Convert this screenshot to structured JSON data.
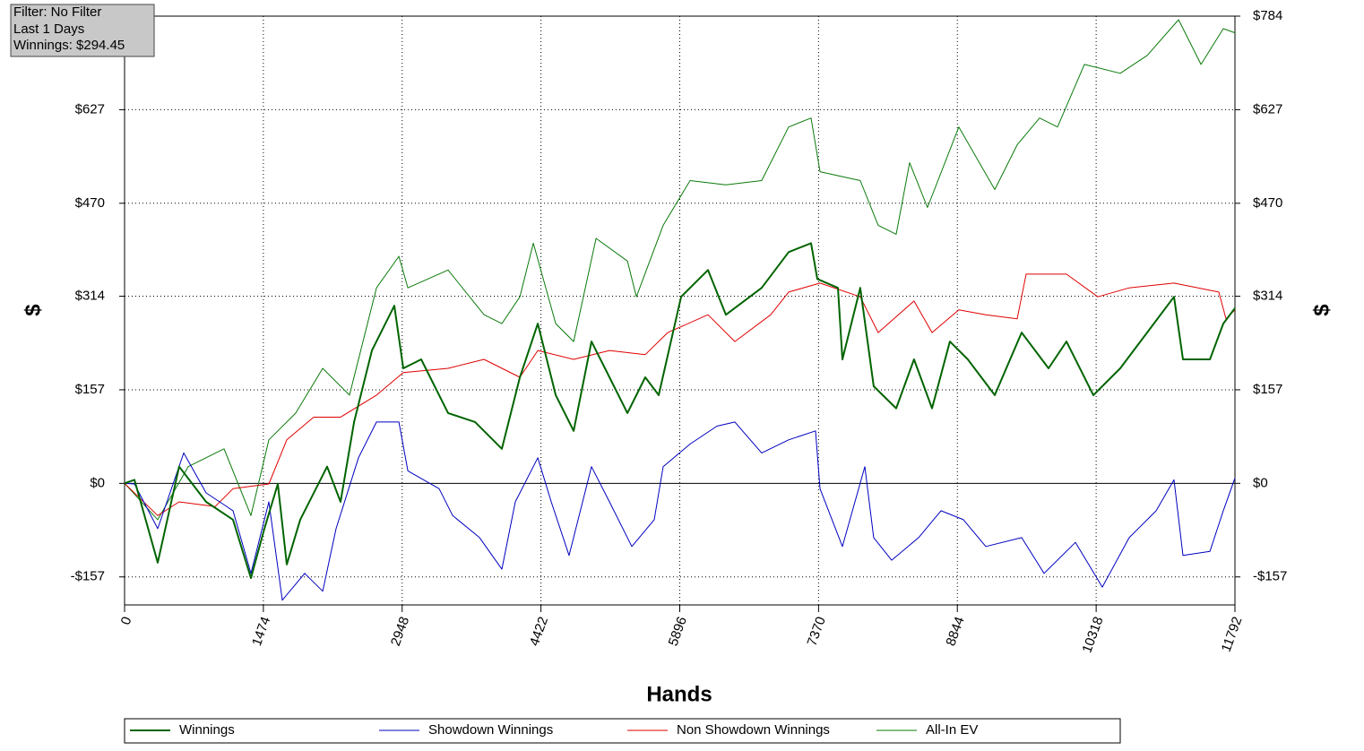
{
  "chart_data": {
    "type": "line",
    "info_box": [
      "Filter: No Filter",
      "Last 1 Days",
      "Winnings: $294.45"
    ],
    "xlabel": "Hands",
    "ylabel": "$",
    "xlim": [
      0,
      11792
    ],
    "xticks": [
      0,
      1474,
      2948,
      4422,
      5896,
      7370,
      8844,
      10318,
      11792
    ],
    "ylim": [
      -204,
      784
    ],
    "yticks": [
      {
        "value": 784,
        "label": "$784"
      },
      {
        "value": 627,
        "label": "$627"
      },
      {
        "value": 470,
        "label": "$470"
      },
      {
        "value": 314,
        "label": "$314"
      },
      {
        "value": 157,
        "label": "$157"
      },
      {
        "value": 0,
        "label": "$0"
      },
      {
        "value": -157,
        "label": "-$157"
      }
    ],
    "grid": true,
    "series": [
      {
        "name": "Winnings",
        "color": "#006400",
        "width": 2,
        "x": [
          0,
          105,
          352,
          580,
          866,
          1152,
          1342,
          1485,
          1627,
          1723,
          1865,
          2151,
          2294,
          2437,
          2627,
          2865,
          2960,
          3150,
          3436,
          3722,
          4007,
          4198,
          4388,
          4579,
          4769,
          4959,
          5150,
          5340,
          5530,
          5672,
          5910,
          6196,
          6386,
          6766,
          7052,
          7290,
          7357,
          7576,
          7623,
          7813,
          7956,
          8194,
          8384,
          8575,
          8765,
          8955,
          9241,
          9527,
          9812,
          10003,
          10288,
          10574,
          10859,
          11145,
          11240,
          11526,
          11668,
          11792
        ],
        "values": [
          0,
          6,
          -133,
          28,
          -31,
          -61,
          -159,
          -76,
          -1,
          -136,
          -61,
          28,
          -31,
          103,
          223,
          298,
          193,
          208,
          118,
          103,
          58,
          178,
          268,
          148,
          88,
          238,
          178,
          118,
          178,
          148,
          313,
          358,
          283,
          328,
          388,
          403,
          343,
          328,
          208,
          328,
          163,
          126,
          208,
          126,
          238,
          208,
          148,
          253,
          193,
          238,
          148,
          193,
          253,
          313,
          208,
          208,
          268,
          294
        ]
      },
      {
        "name": "Showdown Winnings",
        "color": "#0000c0",
        "width": 1,
        "x": [
          0,
          105,
          352,
          628,
          866,
          1152,
          1342,
          1532,
          1675,
          1913,
          2104,
          2246,
          2484,
          2675,
          2913,
          3008,
          3341,
          3484,
          3770,
          4007,
          4150,
          4388,
          4531,
          4721,
          4959,
          5150,
          5387,
          5625,
          5720,
          6005,
          6291,
          6481,
          6766,
          7052,
          7338,
          7385,
          7623,
          7861,
          7956,
          8146,
          8432,
          8670,
          8908,
          9146,
          9527,
          9765,
          10098,
          10383,
          10669,
          10955,
          11145,
          11240,
          11526,
          11668,
          11792
        ],
        "values": [
          0,
          -1,
          -76,
          51,
          -16,
          -46,
          -151,
          -31,
          -196,
          -151,
          -181,
          -76,
          43,
          103,
          103,
          21,
          -9,
          -54,
          -91,
          -144,
          -31,
          43,
          -31,
          -121,
          28,
          -31,
          -106,
          -61,
          28,
          66,
          96,
          103,
          51,
          73,
          88,
          -9,
          -106,
          28,
          -91,
          -129,
          -91,
          -46,
          -61,
          -106,
          -91,
          -151,
          -99,
          -174,
          -91,
          -46,
          6,
          -121,
          -114,
          -46,
          9
        ]
      },
      {
        "name": "Non Showdown Winnings",
        "color": "#e00000",
        "width": 1,
        "x": [
          0,
          352,
          580,
          961,
          1152,
          1532,
          1723,
          2008,
          2294,
          2675,
          2960,
          3436,
          3817,
          4198,
          4388,
          4769,
          5150,
          5530,
          5768,
          6196,
          6481,
          6862,
          7052,
          7385,
          7813,
          8003,
          8384,
          8575,
          8860,
          9146,
          9479,
          9574,
          10003,
          10336,
          10669,
          11145,
          11621,
          11697,
          11792
        ],
        "values": [
          0,
          -54,
          -31,
          -39,
          -9,
          -1,
          73,
          111,
          111,
          148,
          186,
          193,
          208,
          178,
          223,
          208,
          223,
          216,
          253,
          283,
          238,
          283,
          321,
          336,
          313,
          253,
          306,
          253,
          291,
          283,
          276,
          351,
          351,
          313,
          328,
          336,
          321,
          276,
          291
        ]
      },
      {
        "name": "All-In EV",
        "color": "#0a7a0a",
        "width": 1,
        "x": [
          0,
          352,
          676,
          1056,
          1342,
          1532,
          1818,
          2104,
          2389,
          2675,
          2913,
          3008,
          3436,
          3817,
          4007,
          4198,
          4341,
          4579,
          4769,
          5007,
          5340,
          5435,
          5720,
          6005,
          6386,
          6766,
          7052,
          7290,
          7385,
          7813,
          8003,
          8194,
          8337,
          8527,
          8860,
          9241,
          9479,
          9717,
          9908,
          10193,
          10574,
          10859,
          11193,
          11431,
          11668,
          11792
        ],
        "values": [
          0,
          -61,
          28,
          58,
          -54,
          73,
          118,
          193,
          148,
          328,
          381,
          328,
          358,
          283,
          268,
          313,
          403,
          268,
          238,
          411,
          373,
          313,
          433,
          508,
          501,
          508,
          598,
          613,
          523,
          508,
          433,
          418,
          538,
          463,
          598,
          493,
          568,
          613,
          598,
          703,
          688,
          718,
          778,
          703,
          763,
          756
        ]
      }
    ]
  }
}
